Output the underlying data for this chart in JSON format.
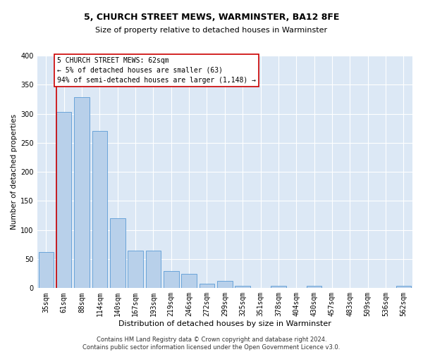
{
  "title": "5, CHURCH STREET MEWS, WARMINSTER, BA12 8FE",
  "subtitle": "Size of property relative to detached houses in Warminster",
  "xlabel": "Distribution of detached houses by size in Warminster",
  "ylabel": "Number of detached properties",
  "footer_line1": "Contains HM Land Registry data © Crown copyright and database right 2024.",
  "footer_line2": "Contains public sector information licensed under the Open Government Licence v3.0.",
  "bar_labels": [
    "35sqm",
    "61sqm",
    "88sqm",
    "114sqm",
    "140sqm",
    "167sqm",
    "193sqm",
    "219sqm",
    "246sqm",
    "272sqm",
    "299sqm",
    "325sqm",
    "351sqm",
    "378sqm",
    "404sqm",
    "430sqm",
    "457sqm",
    "483sqm",
    "509sqm",
    "536sqm",
    "562sqm"
  ],
  "bar_values": [
    62,
    303,
    328,
    270,
    120,
    65,
    65,
    30,
    25,
    8,
    12,
    4,
    0,
    4,
    0,
    4,
    0,
    0,
    0,
    0,
    4
  ],
  "bar_color": "#b8d0ea",
  "bar_edge_color": "#5b9bd5",
  "bg_color": "#dce8f5",
  "grid_color": "#ffffff",
  "property_line_x": 0.575,
  "annotation_text": "5 CHURCH STREET MEWS: 62sqm\n← 5% of detached houses are smaller (63)\n94% of semi-detached houses are larger (1,148) →",
  "annotation_box_edgecolor": "#cc0000",
  "ylim": [
    0,
    400
  ],
  "yticks": [
    0,
    50,
    100,
    150,
    200,
    250,
    300,
    350,
    400
  ],
  "figsize": [
    6.0,
    5.0
  ],
  "dpi": 100,
  "title_fontsize": 9,
  "subtitle_fontsize": 8,
  "ylabel_fontsize": 7.5,
  "xlabel_fontsize": 8,
  "tick_fontsize": 7,
  "annotation_fontsize": 7,
  "footer_fontsize": 6
}
